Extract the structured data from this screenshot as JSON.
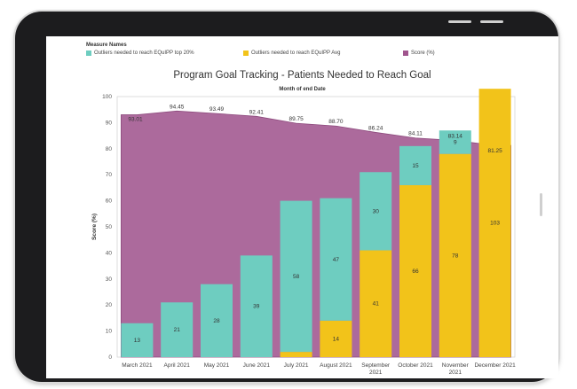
{
  "legend": {
    "title": "Measure Names",
    "items": [
      {
        "label": "Outliers needed to reach EQuIPP top 20%",
        "color": "#6ecdc0"
      },
      {
        "label": "Outliers needed to reach EQuIPP Avg",
        "color": "#f2c31a"
      },
      {
        "label": "Score (%)",
        "color": "#a0558e"
      }
    ]
  },
  "chart_data": {
    "type": "bar",
    "title": "Program Goal Tracking - Patients Needed to Reach Goal",
    "x_header": "Month of end Date",
    "ylabel": "Score (%)",
    "ylim": [
      0,
      100
    ],
    "yticks": [
      0,
      10,
      20,
      30,
      40,
      50,
      60,
      70,
      80,
      90,
      100
    ],
    "grid": false,
    "categories": [
      "March 2021",
      "April 2021",
      "May 2021",
      "June 2021",
      "July 2021",
      "August 2021",
      "September 2021",
      "October 2021",
      "November 2021",
      "December 2021"
    ],
    "category_lines": [
      [
        "March 2021"
      ],
      [
        "April 2021"
      ],
      [
        "May 2021"
      ],
      [
        "June 2021"
      ],
      [
        "July 2021"
      ],
      [
        "August 2021"
      ],
      [
        "September",
        "2021"
      ],
      [
        "October 2021"
      ],
      [
        "November",
        "2021"
      ],
      [
        "December 2021"
      ]
    ],
    "series": [
      {
        "name": "Score (%)",
        "type": "area",
        "color": "#a0558e",
        "values": [
          93.01,
          94.45,
          93.49,
          92.41,
          89.75,
          88.7,
          86.24,
          84.11,
          83.14,
          81.25
        ]
      },
      {
        "name": "Outliers needed to reach EQuIPP Avg",
        "type": "bar",
        "color": "#f2c31a",
        "values": [
          0,
          0,
          0,
          0,
          2,
          14,
          41,
          66,
          78,
          103
        ]
      },
      {
        "name": "Outliers needed to reach EQuIPP top 20%",
        "type": "bar",
        "color": "#6ecdc0",
        "values": [
          13,
          21,
          28,
          39,
          58,
          47,
          30,
          15,
          9,
          0
        ]
      }
    ],
    "score_labels": [
      "93.01",
      "94.45",
      "93.49",
      "92.41",
      "89.75",
      "88.70",
      "86.24",
      "84.11",
      "83.14",
      "81.25"
    ],
    "avg_labels": [
      "",
      "",
      "",
      "",
      "",
      "14",
      "41",
      "66",
      "78",
      "103"
    ],
    "top_labels": [
      "13",
      "21",
      "28",
      "39",
      "58",
      "47",
      "30",
      "15",
      "9",
      ""
    ]
  }
}
